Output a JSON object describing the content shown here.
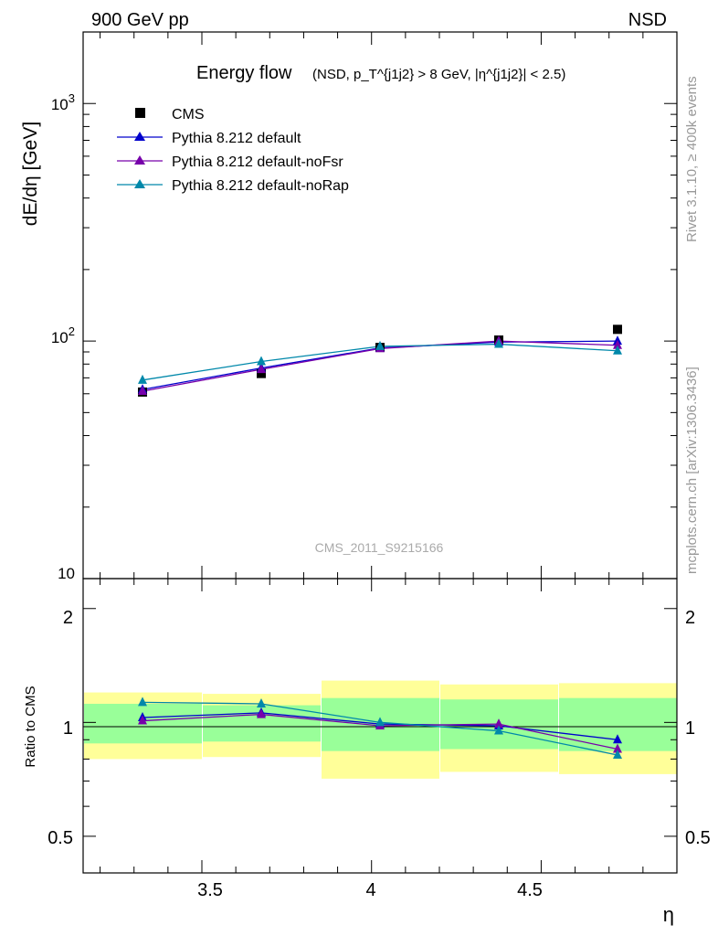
{
  "header": {
    "left": "900 GeV pp",
    "right": "NSD"
  },
  "side": {
    "top": "Rivet 3.1.10, ≥ 400k events",
    "bottom": "mcplots.cern.ch [arXiv:1306.3436]"
  },
  "watermark": "CMS_2011_S9215166",
  "title": {
    "main": "Energy flow",
    "sub": "(NSD, p_T^{j1j2} > 8 GeV, |η^{j1j2}| < 2.5)"
  },
  "colors": {
    "cms": "#000000",
    "default": "#0000cc",
    "noFsr": "#7700aa",
    "noRap": "#0088aa",
    "band_inner": "#99ff99",
    "band_outer": "#ffff99"
  },
  "chart_data": {
    "type": "line",
    "title": "Energy flow (NSD, p_T^{j1j2} > 8 GeV, |η^{j1j2}| < 2.5)",
    "xlabel": "η",
    "ylabel": "dE/dη [GeV]",
    "ratio_ylabel": "Ratio to CMS",
    "xlim": [
      3.15,
      4.9
    ],
    "ylim": [
      10,
      2000
    ],
    "yscale": "log",
    "ratio_ylim": [
      0.4,
      2.4
    ],
    "x_ticks": [
      "3.5",
      "4",
      "4.5"
    ],
    "y_ticks": [
      "10",
      "10^2",
      "10^3"
    ],
    "ratio_ticks": [
      "0.5",
      "1",
      "2"
    ],
    "x": [
      3.325,
      3.675,
      4.025,
      4.375,
      4.725
    ],
    "bin_edges": [
      3.15,
      3.5,
      3.85,
      4.2,
      4.55,
      4.9
    ],
    "cms": {
      "name": "CMS",
      "values": [
        61,
        73,
        94,
        101,
        112
      ],
      "stat_band": [
        0.12,
        0.11,
        0.16,
        0.15,
        0.16
      ],
      "total_band": [
        0.2,
        0.19,
        0.29,
        0.26,
        0.27
      ]
    },
    "series": [
      {
        "name": "Pythia 8.212 default",
        "key": "default",
        "values": [
          62.5,
          77,
          93.5,
          99,
          100
        ],
        "ratio": [
          1.03,
          1.06,
          0.99,
          0.98,
          0.9
        ]
      },
      {
        "name": "Pythia 8.212 default-noFsr",
        "key": "noFsr",
        "values": [
          61.5,
          76,
          93,
          100,
          96
        ],
        "ratio": [
          1.01,
          1.05,
          0.98,
          0.99,
          0.85
        ]
      },
      {
        "name": "Pythia 8.212 default-noRap",
        "key": "noRap",
        "values": [
          68.5,
          82,
          95,
          97,
          91
        ],
        "ratio": [
          1.13,
          1.12,
          1.0,
          0.95,
          0.82
        ]
      }
    ]
  }
}
